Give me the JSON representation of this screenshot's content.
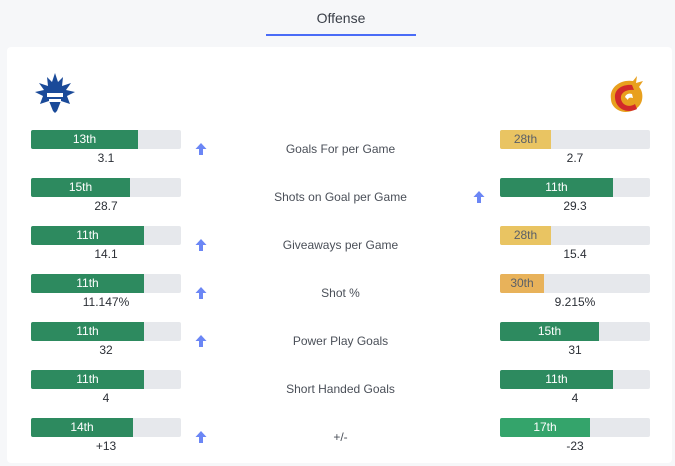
{
  "tabs": [
    {
      "label": "Offense"
    }
  ],
  "teams": {
    "left_logo": "maple-leaf-icon",
    "right_logo": "flaming-c-icon"
  },
  "colors": {
    "green": "#2d8a5f",
    "green_light": "#34a46b",
    "yellow": "#e9c462",
    "orange": "#e8b25a",
    "track": "#e6e8ec",
    "arrow": "#6b86f5",
    "accent": "#4a6cf7"
  },
  "stats": [
    {
      "label": "Goals For per Game",
      "left": {
        "rank": "13th",
        "value": "3.1",
        "fill": 0.71,
        "color": "green"
      },
      "right": {
        "rank": "28th",
        "value": "2.7",
        "fill": 0.34,
        "color": "yellow"
      },
      "arrow": "left"
    },
    {
      "label": "Shots on Goal per Game",
      "left": {
        "rank": "15th",
        "value": "28.7",
        "fill": 0.66,
        "color": "green"
      },
      "right": {
        "rank": "11th",
        "value": "29.3",
        "fill": 0.75,
        "color": "green"
      },
      "arrow": "right"
    },
    {
      "label": "Giveaways per Game",
      "left": {
        "rank": "11th",
        "value": "14.1",
        "fill": 0.75,
        "color": "green"
      },
      "right": {
        "rank": "28th",
        "value": "15.4",
        "fill": 0.34,
        "color": "yellow"
      },
      "arrow": "left"
    },
    {
      "label": "Shot %",
      "left": {
        "rank": "11th",
        "value": "11.147%",
        "fill": 0.75,
        "color": "green"
      },
      "right": {
        "rank": "30th",
        "value": "9.215%",
        "fill": 0.29,
        "color": "orange"
      },
      "arrow": "left"
    },
    {
      "label": "Power Play Goals",
      "left": {
        "rank": "11th",
        "value": "32",
        "fill": 0.75,
        "color": "green"
      },
      "right": {
        "rank": "15th",
        "value": "31",
        "fill": 0.66,
        "color": "green"
      },
      "arrow": "left"
    },
    {
      "label": "Short Handed Goals",
      "left": {
        "rank": "11th",
        "value": "4",
        "fill": 0.75,
        "color": "green"
      },
      "right": {
        "rank": "11th",
        "value": "4",
        "fill": 0.75,
        "color": "green"
      },
      "arrow": "none"
    },
    {
      "label": "+/-",
      "left": {
        "rank": "14th",
        "value": "+13",
        "fill": 0.68,
        "color": "green"
      },
      "right": {
        "rank": "17th",
        "value": "-23",
        "fill": 0.6,
        "color": "green_light"
      },
      "arrow": "left"
    }
  ]
}
